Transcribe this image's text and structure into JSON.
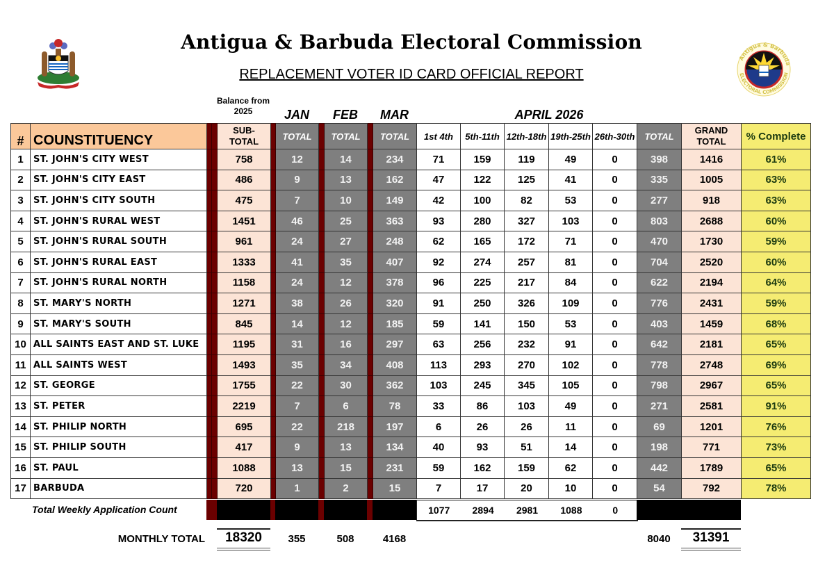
{
  "header": {
    "title": "Antigua & Barbuda Electoral Commission",
    "subtitle": "REPLACEMENT VOTER ID CARD OFFICIAL REPORT",
    "left_logo": "coat-of-arms-icon",
    "right_logo": "electoral-commission-seal-icon",
    "seal_text_top": "Antigua & Barbuda",
    "seal_text_bottom": "ELECTORAL COMMISSION"
  },
  "column_groups": {
    "balance": "Balance from 2025",
    "jan": "JAN",
    "feb": "FEB",
    "mar": "MAR",
    "april": "APRIL 2026"
  },
  "columns": {
    "num": "#",
    "name": "COUNSTITUENCY",
    "subtotal_1": "SUB-",
    "subtotal_2": "TOTAL",
    "jan_total": "TOTAL",
    "feb_total": "TOTAL",
    "mar_total": "TOTAL",
    "w1": "1st 4th",
    "w2": "5th-11th",
    "w3": "12th-18th",
    "w4": "19th-25th",
    "w5": "26th-30th",
    "apr_total": "TOTAL",
    "grand_1": "GRAND",
    "grand_2": "TOTAL",
    "pct": "% Complete"
  },
  "colors": {
    "header_orange": "#fbc89a",
    "subtotal_pink": "#fce4d6",
    "month_gray": "#7f7f7f",
    "separator_red": "#6b0000",
    "pct_yellow": "#f5ec72"
  },
  "rows": [
    {
      "num": "1",
      "name": "ST. JOHN'S CITY WEST",
      "subtotal": "758",
      "jan": "12",
      "feb": "14",
      "mar": "234",
      "w1": "71",
      "w2": "159",
      "w3": "119",
      "w4": "49",
      "w5": "0",
      "apr": "398",
      "grand": "1416",
      "pct": "61%"
    },
    {
      "num": "2",
      "name": "ST. JOHN'S CITY EAST",
      "subtotal": "486",
      "jan": "9",
      "feb": "13",
      "mar": "162",
      "w1": "47",
      "w2": "122",
      "w3": "125",
      "w4": "41",
      "w5": "0",
      "apr": "335",
      "grand": "1005",
      "pct": "63%"
    },
    {
      "num": "3",
      "name": "ST. JOHN'S CITY SOUTH",
      "subtotal": "475",
      "jan": "7",
      "feb": "10",
      "mar": "149",
      "w1": "42",
      "w2": "100",
      "w3": "82",
      "w4": "53",
      "w5": "0",
      "apr": "277",
      "grand": "918",
      "pct": "63%"
    },
    {
      "num": "4",
      "name": "ST. JOHN'S RURAL WEST",
      "subtotal": "1451",
      "jan": "46",
      "feb": "25",
      "mar": "363",
      "w1": "93",
      "w2": "280",
      "w3": "327",
      "w4": "103",
      "w5": "0",
      "apr": "803",
      "grand": "2688",
      "pct": "60%"
    },
    {
      "num": "5",
      "name": "ST. JOHN'S RURAL SOUTH",
      "subtotal": "961",
      "jan": "24",
      "feb": "27",
      "mar": "248",
      "w1": "62",
      "w2": "165",
      "w3": "172",
      "w4": "71",
      "w5": "0",
      "apr": "470",
      "grand": "1730",
      "pct": "59%"
    },
    {
      "num": "6",
      "name": "ST. JOHN'S RURAL EAST",
      "subtotal": "1333",
      "jan": "41",
      "feb": "35",
      "mar": "407",
      "w1": "92",
      "w2": "274",
      "w3": "257",
      "w4": "81",
      "w5": "0",
      "apr": "704",
      "grand": "2520",
      "pct": "60%"
    },
    {
      "num": "7",
      "name": "ST. JOHN'S RURAL NORTH",
      "subtotal": "1158",
      "jan": "24",
      "feb": "12",
      "mar": "378",
      "w1": "96",
      "w2": "225",
      "w3": "217",
      "w4": "84",
      "w5": "0",
      "apr": "622",
      "grand": "2194",
      "pct": "64%"
    },
    {
      "num": "8",
      "name": "ST. MARY'S NORTH",
      "subtotal": "1271",
      "jan": "38",
      "feb": "26",
      "mar": "320",
      "w1": "91",
      "w2": "250",
      "w3": "326",
      "w4": "109",
      "w5": "0",
      "apr": "776",
      "grand": "2431",
      "pct": "59%"
    },
    {
      "num": "9",
      "name": "ST. MARY'S SOUTH",
      "subtotal": "845",
      "jan": "14",
      "feb": "12",
      "mar": "185",
      "w1": "59",
      "w2": "141",
      "w3": "150",
      "w4": "53",
      "w5": "0",
      "apr": "403",
      "grand": "1459",
      "pct": "68%"
    },
    {
      "num": "10",
      "name": "ALL SAINTS EAST AND ST. LUKE",
      "subtotal": "1195",
      "jan": "31",
      "feb": "16",
      "mar": "297",
      "w1": "63",
      "w2": "256",
      "w3": "232",
      "w4": "91",
      "w5": "0",
      "apr": "642",
      "grand": "2181",
      "pct": "65%"
    },
    {
      "num": "11",
      "name": "ALL SAINTS WEST",
      "subtotal": "1493",
      "jan": "35",
      "feb": "34",
      "mar": "408",
      "w1": "113",
      "w2": "293",
      "w3": "270",
      "w4": "102",
      "w5": "0",
      "apr": "778",
      "grand": "2748",
      "pct": "69%"
    },
    {
      "num": "12",
      "name": "ST. GEORGE",
      "subtotal": "1755",
      "jan": "22",
      "feb": "30",
      "mar": "362",
      "w1": "103",
      "w2": "245",
      "w3": "345",
      "w4": "105",
      "w5": "0",
      "apr": "798",
      "grand": "2967",
      "pct": "65%"
    },
    {
      "num": "13",
      "name": "ST. PETER",
      "subtotal": "2219",
      "jan": "7",
      "feb": "6",
      "mar": "78",
      "w1": "33",
      "w2": "86",
      "w3": "103",
      "w4": "49",
      "w5": "0",
      "apr": "271",
      "grand": "2581",
      "pct": "91%"
    },
    {
      "num": "14",
      "name": "ST. PHILIP NORTH",
      "subtotal": "695",
      "jan": "22",
      "feb": "218",
      "mar": "197",
      "w1": "6",
      "w2": "26",
      "w3": "26",
      "w4": "11",
      "w5": "0",
      "apr": "69",
      "grand": "1201",
      "pct": "76%"
    },
    {
      "num": "15",
      "name": "ST. PHILIP SOUTH",
      "subtotal": "417",
      "jan": "9",
      "feb": "13",
      "mar": "134",
      "w1": "40",
      "w2": "93",
      "w3": "51",
      "w4": "14",
      "w5": "0",
      "apr": "198",
      "grand": "771",
      "pct": "73%"
    },
    {
      "num": "16",
      "name": "ST. PAUL",
      "subtotal": "1088",
      "jan": "13",
      "feb": "15",
      "mar": "231",
      "w1": "59",
      "w2": "162",
      "w3": "159",
      "w4": "62",
      "w5": "0",
      "apr": "442",
      "grand": "1789",
      "pct": "65%"
    },
    {
      "num": "17",
      "name": "BARBUDA",
      "subtotal": "720",
      "jan": "1",
      "feb": "2",
      "mar": "15",
      "w1": "7",
      "w2": "17",
      "w3": "20",
      "w4": "10",
      "w5": "0",
      "apr": "54",
      "grand": "792",
      "pct": "78%"
    }
  ],
  "weekly_totals": {
    "label": "Total Weekly Application Count",
    "values": [
      "1077",
      "2894",
      "2981",
      "1088",
      "0"
    ]
  },
  "monthly_totals": {
    "label": "MONTHLY TOTAL",
    "subtotal": "18320",
    "jan": "355",
    "feb": "508",
    "mar": "4168",
    "apr": "8040",
    "grand": "31391"
  }
}
